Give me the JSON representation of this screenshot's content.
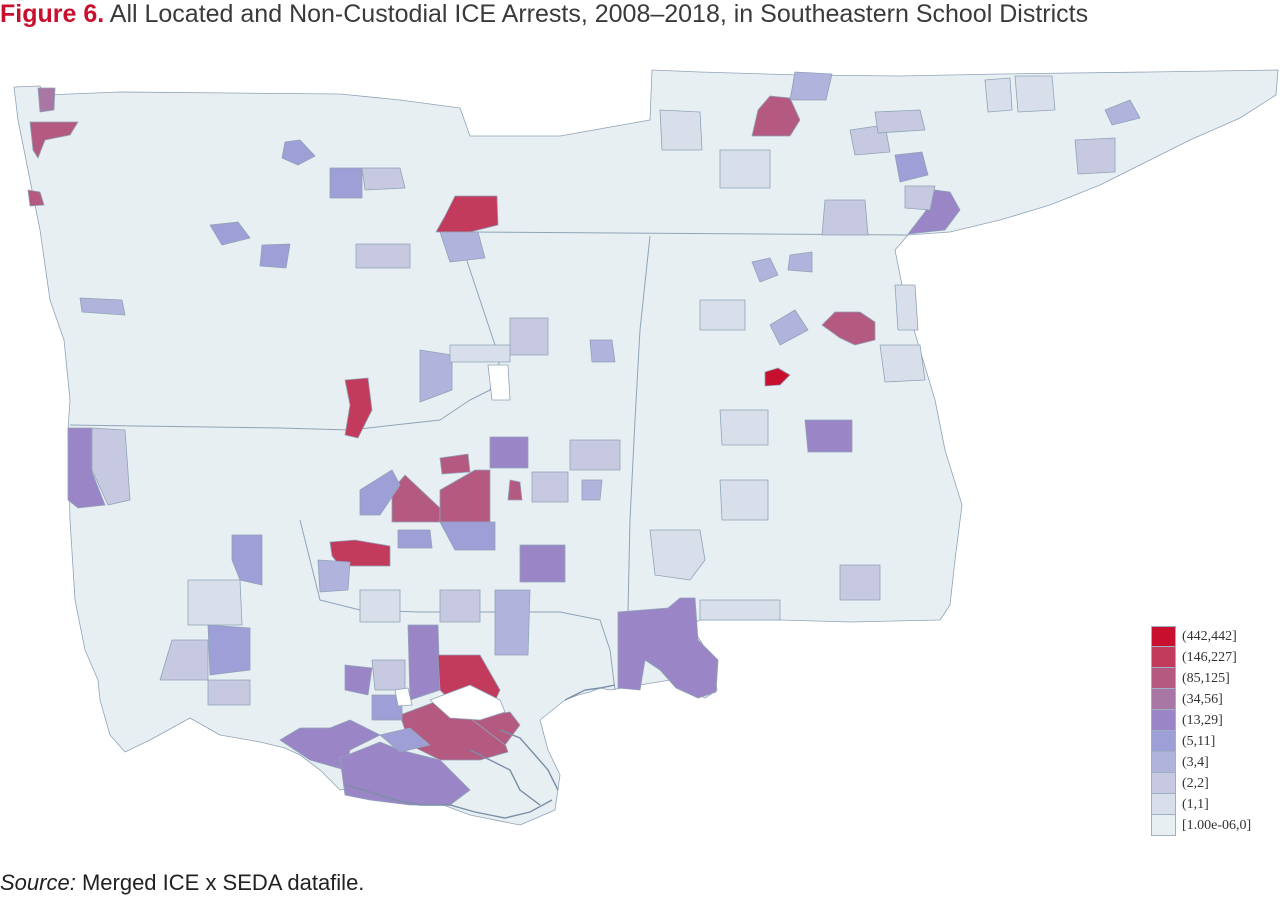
{
  "figure": {
    "label": "Figure 6.",
    "title": "All Located and Non-Custodial ICE Arrests, 2008–2018, in Southeastern School Districts"
  },
  "source": {
    "label": "Source:",
    "text": "Merged ICE x SEDA datafile."
  },
  "map": {
    "base_fill": "#e8eff2",
    "border_color": "#8fa3b8",
    "water_color": "#ffffff"
  },
  "legend": {
    "items": [
      {
        "label": "(442,442]",
        "color": "#c8102e"
      },
      {
        "label": "(146,227]",
        "color": "#c33b5c"
      },
      {
        "label": "(85,125]",
        "color": "#b45a80"
      },
      {
        "label": "(34,56]",
        "color": "#a877a4"
      },
      {
        "label": "(13,29]",
        "color": "#9a86c6"
      },
      {
        "label": "(5,11]",
        "color": "#9e9fd6"
      },
      {
        "label": "(3,4]",
        "color": "#b0b3dc"
      },
      {
        "label": "(2,2]",
        "color": "#c6c9e0"
      },
      {
        "label": "(1,1]",
        "color": "#d9dfea"
      },
      {
        "label": "[1.00e-06,0]",
        "color": "#e8eff2"
      }
    ]
  }
}
